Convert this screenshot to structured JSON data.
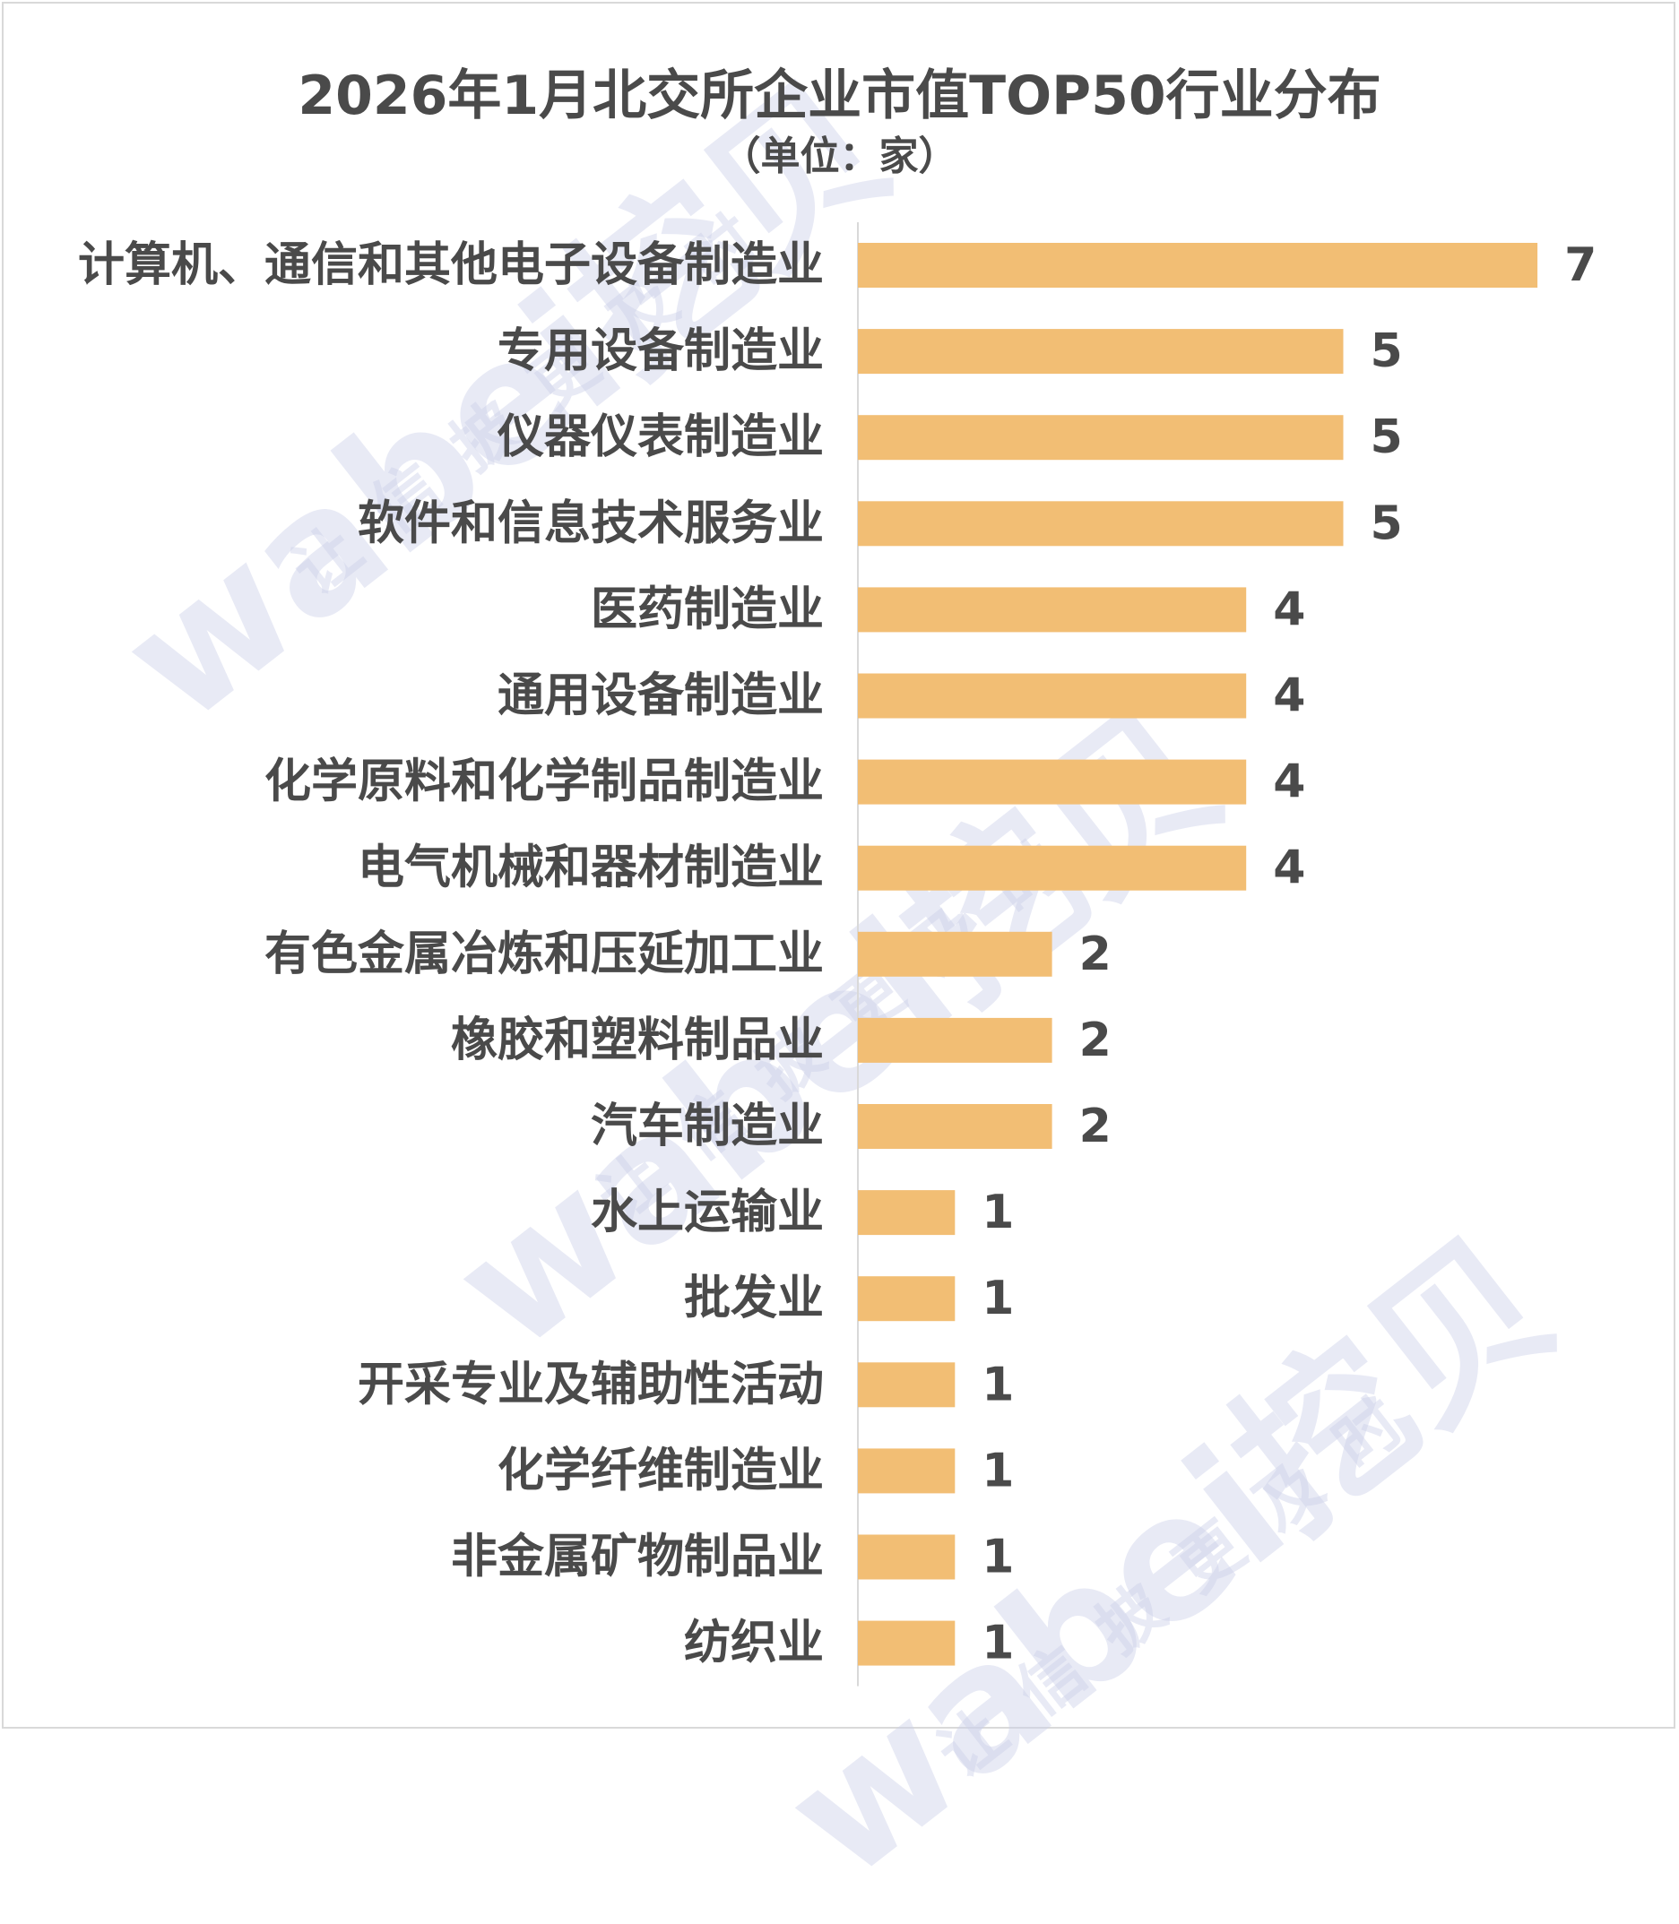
{
  "chart_data": {
    "type": "bar",
    "orientation": "horizontal",
    "title": "2026年1月北交所企业市值TOP50行业分布",
    "subtitle": "（单位：家）",
    "categories": [
      "计算机、通信和其他电子设备制造业",
      "专用设备制造业",
      "仪器仪表制造业",
      "软件和信息技术服务业",
      "医药制造业",
      "通用设备制造业",
      "化学原料和化学制品制造业",
      "电气机械和器材制造业",
      "有色金属冶炼和压延加工业",
      "橡胶和塑料制品业",
      "汽车制造业",
      "水上运输业",
      "批发业",
      "开采专业及辅助性活动",
      "化学纤维制造业",
      "非金属矿物制品业",
      "纺织业"
    ],
    "values": [
      7,
      5,
      5,
      5,
      4,
      4,
      4,
      4,
      2,
      2,
      2,
      1,
      1,
      1,
      1,
      1,
      1
    ],
    "data_labels": true,
    "grid": false,
    "legend": "none",
    "colors": {
      "bar": "#f2be74",
      "text": "#4a4a4a",
      "axis": "#d9d9d9"
    }
  },
  "watermark": {
    "brand": "wabei挖贝",
    "slogan": "让信披更及时"
  }
}
